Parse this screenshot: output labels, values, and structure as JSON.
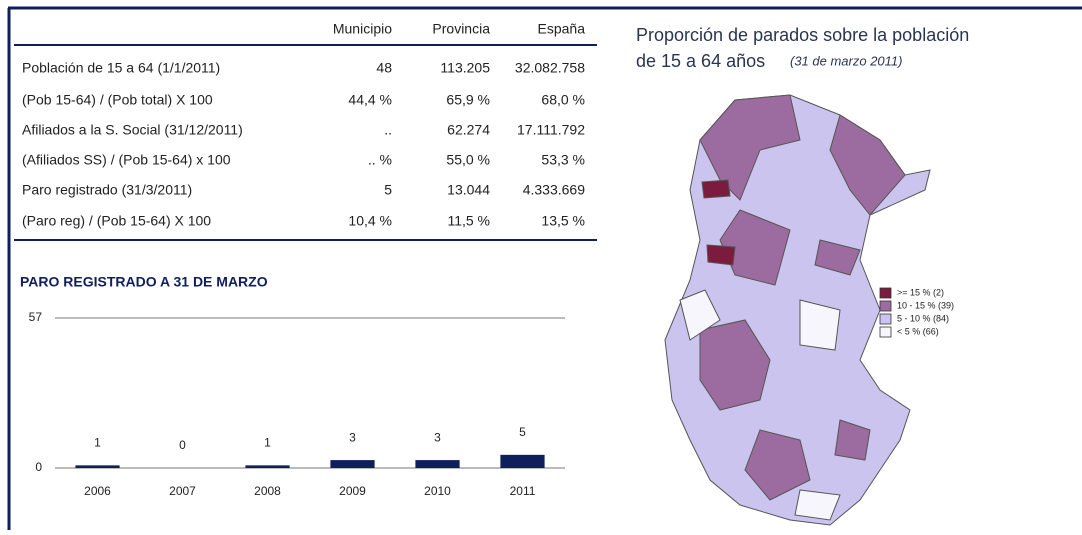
{
  "table": {
    "header": [
      "Municipio",
      "Provincia",
      "España"
    ],
    "rows": [
      {
        "label": "Población de 15 a 64 (1/1/2011)",
        "cells": [
          "48",
          "113.205",
          "32.082.758"
        ]
      },
      {
        "label": "(Pob 15-64) / (Pob total) X 100",
        "cells": [
          "44,4  %",
          "65,9  %",
          "68,0  %"
        ]
      },
      {
        "label": "Afiliados a la S. Social (31/12/2011)",
        "cells": [
          "..",
          "62.274",
          "17.111.792"
        ]
      },
      {
        "label": "(Afiliados SS) / (Pob 15-64) x 100",
        "cells": [
          "..  %",
          "55,0  %",
          "53,3  %"
        ]
      },
      {
        "label": "Paro registrado (31/3/2011)",
        "cells": [
          "5",
          "13.044",
          "4.333.669"
        ]
      },
      {
        "label": "(Paro reg) / (Pob 15-64) X 100",
        "cells": [
          "10,4  %",
          "11,5  %",
          "13,5  %"
        ]
      }
    ]
  },
  "chart_data": {
    "type": "bar",
    "title": "PARO REGISTRADO A 31 DE MARZO",
    "categories": [
      "2006",
      "2007",
      "2008",
      "2009",
      "2010",
      "2011"
    ],
    "values": [
      1,
      0,
      1,
      3,
      3,
      5
    ],
    "color": "#0f1f5c",
    "ylim": [
      0,
      57
    ],
    "yticks": [
      0,
      57
    ],
    "grid": true
  },
  "map": {
    "title": "Proporción de parados sobre la población",
    "title2": "de 15 a 64 años",
    "subtitle": "(31 de marzo 2011)",
    "legend": [
      {
        "label": ">= 15 %  (2)",
        "color": "#7b1b3d"
      },
      {
        "label": "10 - 15 %  (39)",
        "color": "#9c6b9f"
      },
      {
        "label": "5 - 10 %  (84)",
        "color": "#cbc4ee"
      },
      {
        "label": "< 5 %  (66)",
        "color": "#f6f6fc"
      }
    ]
  }
}
